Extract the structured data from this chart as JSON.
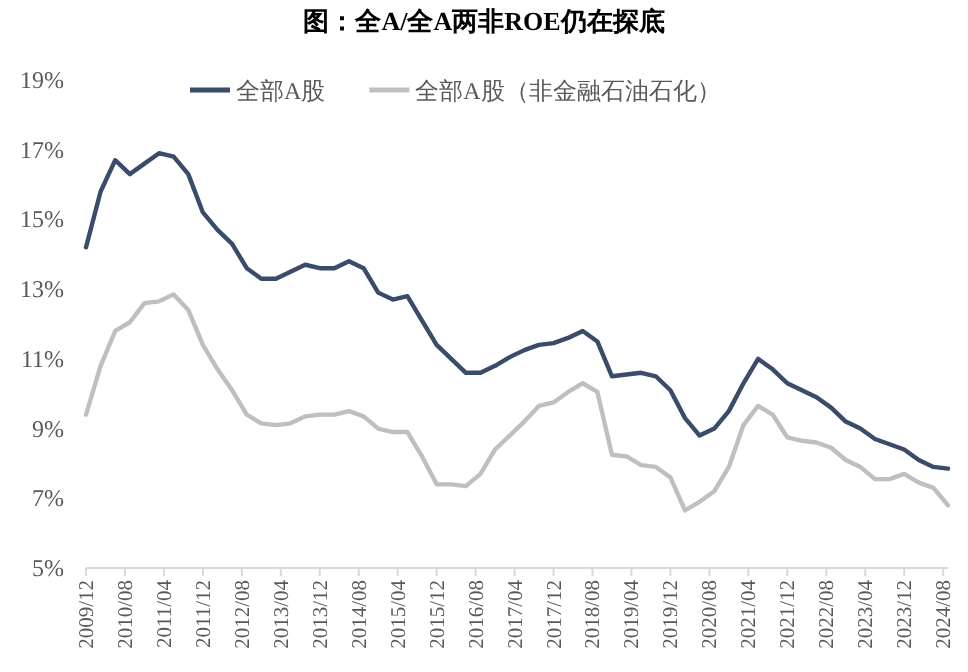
{
  "chart_data": {
    "type": "line",
    "title": "图：全A/全A两非ROE仍在探底",
    "x": [
      "2009-12",
      "2010-03",
      "2010-06",
      "2010-09",
      "2010-12",
      "2011-03",
      "2011-06",
      "2011-09",
      "2011-12",
      "2012-03",
      "2012-06",
      "2012-09",
      "2012-12",
      "2013-03",
      "2013-06",
      "2013-09",
      "2013-12",
      "2014-03",
      "2014-06",
      "2014-09",
      "2014-12",
      "2015-03",
      "2015-06",
      "2015-09",
      "2015-12",
      "2016-03",
      "2016-06",
      "2016-09",
      "2016-12",
      "2017-03",
      "2017-06",
      "2017-09",
      "2017-12",
      "2018-03",
      "2018-06",
      "2018-09",
      "2018-12",
      "2019-03",
      "2019-06",
      "2019-09",
      "2019-12",
      "2020-03",
      "2020-06",
      "2020-09",
      "2020-12",
      "2021-03",
      "2021-06",
      "2021-09",
      "2021-12",
      "2022-03",
      "2022-06",
      "2022-09",
      "2022-12",
      "2023-03",
      "2023-06",
      "2023-09",
      "2023-12",
      "2024-03",
      "2024-06",
      "2024-09"
    ],
    "series": [
      {
        "name": "全部A股",
        "color": "#3b4b6a",
        "values": [
          14.2,
          15.8,
          16.7,
          16.3,
          16.6,
          16.9,
          16.8,
          16.3,
          15.2,
          14.7,
          14.3,
          13.6,
          13.3,
          13.3,
          13.5,
          13.7,
          13.6,
          13.6,
          13.8,
          13.6,
          12.9,
          12.7,
          12.8,
          12.1,
          11.4,
          11.0,
          10.6,
          10.6,
          10.8,
          11.05,
          11.25,
          11.4,
          11.45,
          11.6,
          11.8,
          11.5,
          10.5,
          10.55,
          10.6,
          10.5,
          10.1,
          9.3,
          8.8,
          9.0,
          9.5,
          10.3,
          11.0,
          10.7,
          10.3,
          10.1,
          9.9,
          9.6,
          9.2,
          9.0,
          8.7,
          8.55,
          8.4,
          8.1,
          7.9,
          7.85
        ]
      },
      {
        "name": "全部A股（非金融石油石化）",
        "color": "#bfbfbf",
        "values": [
          9.4,
          10.8,
          11.8,
          12.05,
          12.6,
          12.65,
          12.85,
          12.4,
          11.4,
          10.7,
          10.1,
          9.4,
          9.15,
          9.1,
          9.15,
          9.35,
          9.4,
          9.4,
          9.5,
          9.35,
          9.0,
          8.9,
          8.9,
          8.2,
          7.4,
          7.4,
          7.35,
          7.7,
          8.4,
          8.8,
          9.2,
          9.65,
          9.75,
          10.05,
          10.3,
          10.05,
          8.25,
          8.2,
          7.95,
          7.9,
          7.6,
          6.65,
          6.9,
          7.2,
          7.9,
          9.1,
          9.65,
          9.4,
          8.75,
          8.65,
          8.6,
          8.45,
          8.1,
          7.9,
          7.55,
          7.55,
          7.7,
          7.45,
          7.3,
          6.8
        ]
      }
    ],
    "xlim": [
      "2009-12",
      "2024-09"
    ],
    "xticks": [
      {
        "value": "2009-12",
        "label": "2009/12"
      },
      {
        "value": "2010-08",
        "label": "2010/08"
      },
      {
        "value": "2011-04",
        "label": "2011/04"
      },
      {
        "value": "2011-12",
        "label": "2011/12"
      },
      {
        "value": "2012-08",
        "label": "2012/08"
      },
      {
        "value": "2013-04",
        "label": "2013/04"
      },
      {
        "value": "2013-12",
        "label": "2013/12"
      },
      {
        "value": "2014-08",
        "label": "2014/08"
      },
      {
        "value": "2015-04",
        "label": "2015/04"
      },
      {
        "value": "2015-12",
        "label": "2015/12"
      },
      {
        "value": "2016-08",
        "label": "2016/08"
      },
      {
        "value": "2017-04",
        "label": "2017/04"
      },
      {
        "value": "2017-12",
        "label": "2017/12"
      },
      {
        "value": "2018-08",
        "label": "2018/08"
      },
      {
        "value": "2019-04",
        "label": "2019/04"
      },
      {
        "value": "2019-12",
        "label": "2019/12"
      },
      {
        "value": "2020-08",
        "label": "2020/08"
      },
      {
        "value": "2021-04",
        "label": "2021/04"
      },
      {
        "value": "2021-12",
        "label": "2021/12"
      },
      {
        "value": "2022-08",
        "label": "2022/08"
      },
      {
        "value": "2023-04",
        "label": "2023/04"
      },
      {
        "value": "2023-12",
        "label": "2023/12"
      },
      {
        "value": "2024-08",
        "label": "2024/08"
      }
    ],
    "ylim": [
      5,
      19
    ],
    "yticks": [
      {
        "value": 5,
        "label": "5%"
      },
      {
        "value": 7,
        "label": "7%"
      },
      {
        "value": 9,
        "label": "9%"
      },
      {
        "value": 11,
        "label": "11%"
      },
      {
        "value": 13,
        "label": "13%"
      },
      {
        "value": 15,
        "label": "15%"
      },
      {
        "value": 17,
        "label": "17%"
      },
      {
        "value": 19,
        "label": "19%"
      }
    ],
    "grid": false,
    "legend": "top",
    "marker": "none",
    "line_style": "solid"
  }
}
